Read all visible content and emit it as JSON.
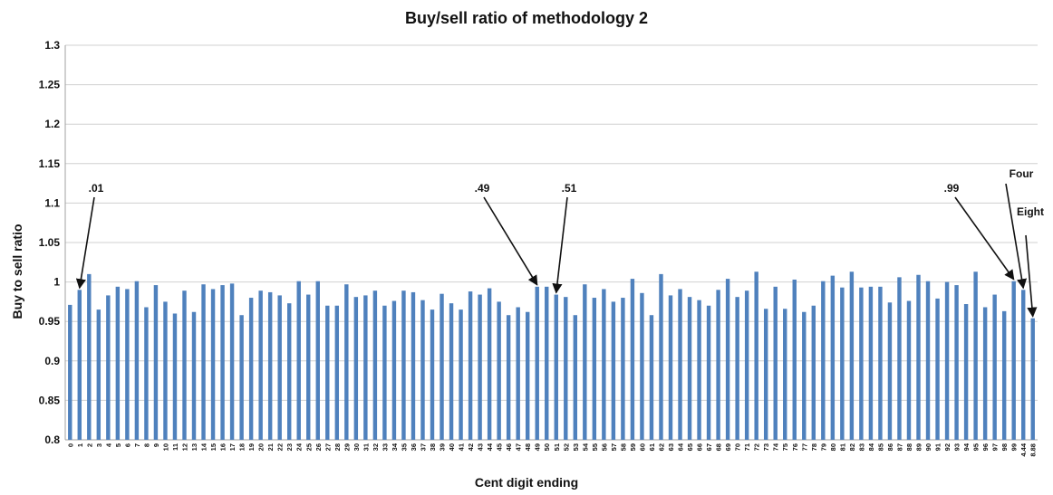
{
  "chart_data": {
    "type": "bar",
    "title": "Buy/sell ratio of methodology 2",
    "xlabel": "Cent digit ending",
    "ylabel": "Buy to sell ratio",
    "ylim": [
      0.8,
      1.3
    ],
    "yticks": [
      "0.8",
      "0.85",
      "0.9",
      "0.95",
      "1",
      "1.05",
      "1.1",
      "1.15",
      "1.2",
      "1.25",
      "1.3"
    ],
    "grid": true,
    "legend": "none",
    "bar_color": "#4F81BD",
    "categories": [
      "0",
      "1",
      "2",
      "3",
      "4",
      "5",
      "6",
      "7",
      "8",
      "9",
      "10",
      "11",
      "12",
      "13",
      "14",
      "15",
      "16",
      "17",
      "18",
      "19",
      "20",
      "21",
      "22",
      "23",
      "24",
      "25",
      "26",
      "27",
      "28",
      "29",
      "30",
      "31",
      "32",
      "33",
      "34",
      "35",
      "36",
      "37",
      "38",
      "39",
      "40",
      "41",
      "42",
      "43",
      "44",
      "45",
      "46",
      "47",
      "48",
      "49",
      "50",
      "51",
      "52",
      "53",
      "54",
      "55",
      "56",
      "57",
      "58",
      "59",
      "60",
      "61",
      "62",
      "63",
      "64",
      "65",
      "66",
      "67",
      "68",
      "69",
      "70",
      "71",
      "72",
      "73",
      "74",
      "75",
      "76",
      "77",
      "78",
      "79",
      "80",
      "81",
      "82",
      "83",
      "84",
      "85",
      "86",
      "87",
      "88",
      "89",
      "90",
      "91",
      "92",
      "93",
      "94",
      "95",
      "96",
      "97",
      "98",
      "99",
      "4.44",
      "8.88"
    ],
    "values": [
      0.971,
      0.99,
      1.01,
      0.965,
      0.983,
      0.994,
      0.991,
      1.001,
      0.968,
      0.996,
      0.975,
      0.96,
      0.989,
      0.962,
      0.997,
      0.991,
      0.996,
      0.998,
      0.958,
      0.98,
      0.989,
      0.987,
      0.983,
      0.973,
      1.001,
      0.984,
      1.001,
      0.97,
      0.97,
      0.997,
      0.981,
      0.983,
      0.989,
      0.97,
      0.976,
      0.989,
      0.987,
      0.977,
      0.965,
      0.985,
      0.973,
      0.965,
      0.988,
      0.984,
      0.992,
      0.975,
      0.958,
      0.968,
      0.962,
      0.994,
      0.994,
      0.984,
      0.981,
      0.958,
      0.997,
      0.98,
      0.991,
      0.975,
      0.98,
      1.004,
      0.986,
      0.958,
      1.01,
      0.983,
      0.991,
      0.981,
      0.977,
      0.97,
      0.99,
      1.004,
      0.981,
      0.989,
      1.013,
      0.966,
      0.994,
      0.966,
      1.003,
      0.962,
      0.97,
      1.001,
      1.008,
      0.993,
      1.013,
      0.993,
      0.994,
      0.994,
      0.974,
      1.006,
      0.976,
      1.009,
      1.001,
      0.979,
      1.0,
      0.996,
      0.972,
      1.013,
      0.968,
      0.984,
      0.963,
      1.001,
      0.99,
      0.954
    ],
    "annotations": [
      {
        "text": ".01",
        "category": "1"
      },
      {
        "text": ".49",
        "category": "49"
      },
      {
        "text": ".51",
        "category": "51"
      },
      {
        "text": ".99",
        "category": "99"
      },
      {
        "text": "Four",
        "category": "4.44"
      },
      {
        "text": "Eight",
        "category": "8.88"
      }
    ]
  }
}
